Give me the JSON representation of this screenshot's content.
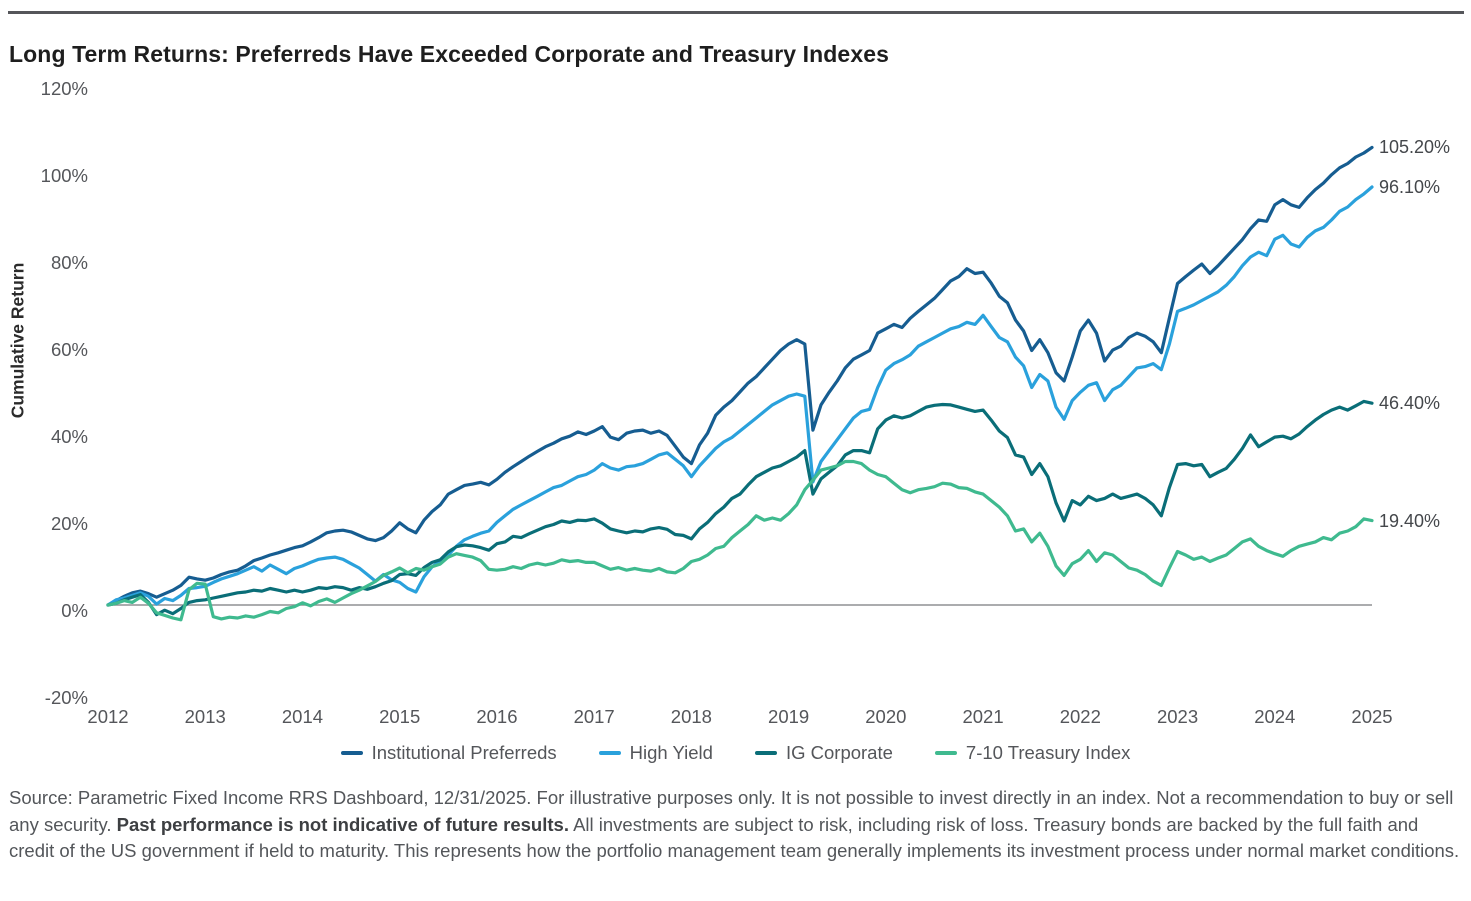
{
  "title": "Long Term Returns: Preferreds Have Exceeded Corporate and Treasury Indexes",
  "chart_data": {
    "type": "line",
    "title": "Long Term Returns: Preferreds Have Exceeded Corporate and Treasury Indexes",
    "xlabel": "",
    "ylabel": "Cumulative Return",
    "ylim": [
      -20,
      120
    ],
    "grid": "none",
    "zero_line": true,
    "legend_position": "bottom",
    "x_unit": "months from Dec 2012 to Dec 2025",
    "y_ticks": [
      {
        "label": "120%",
        "value": 120
      },
      {
        "label": "100%",
        "value": 100
      },
      {
        "label": "80%",
        "value": 80
      },
      {
        "label": "60%",
        "value": 60
      },
      {
        "label": "40%",
        "value": 40
      },
      {
        "label": "20%",
        "value": 20
      },
      {
        "label": "0%",
        "value": 0
      },
      {
        "label": "-20%",
        "value": -20
      }
    ],
    "x_ticks": [
      {
        "label": "2012",
        "month": 0
      },
      {
        "label": "2013",
        "month": 12
      },
      {
        "label": "2014",
        "month": 24
      },
      {
        "label": "2015",
        "month": 36
      },
      {
        "label": "2016",
        "month": 48
      },
      {
        "label": "2017",
        "month": 60
      },
      {
        "label": "2018",
        "month": 72
      },
      {
        "label": "2019",
        "month": 84
      },
      {
        "label": "2020",
        "month": 96
      },
      {
        "label": "2021",
        "month": 108
      },
      {
        "label": "2022",
        "month": 120
      },
      {
        "label": "2023",
        "month": 132
      },
      {
        "label": "2024",
        "month": 144
      },
      {
        "label": "2025",
        "month": 156
      }
    ],
    "series": [
      {
        "name": "Institutional Preferreds",
        "color": "#165d91",
        "end_label": "105.20%",
        "end_value": 105.2,
        "values": [
          0,
          1.0,
          2.0,
          2.8,
          3.2,
          2.6,
          1.8,
          2.6,
          3.4,
          4.5,
          6.4,
          6.0,
          5.7,
          6.2,
          7.0,
          7.6,
          8.0,
          9.0,
          10.2,
          10.8,
          11.5,
          12.0,
          12.6,
          13.2,
          13.6,
          14.5,
          15.5,
          16.6,
          17.0,
          17.2,
          16.8,
          16.0,
          15.2,
          14.8,
          15.5,
          17.0,
          18.9,
          17.5,
          16.6,
          19.5,
          21.5,
          23.0,
          25.5,
          26.5,
          27.5,
          27.8,
          28.2,
          27.6,
          28.9,
          30.5,
          31.8,
          33.0,
          34.2,
          35.3,
          36.4,
          37.2,
          38.2,
          38.8,
          39.8,
          39.2,
          40.0,
          41.0,
          38.6,
          38.0,
          39.5,
          40.0,
          40.2,
          39.5,
          40.0,
          39.0,
          36.5,
          34.0,
          32.5,
          36.8,
          39.5,
          43.6,
          45.5,
          47.0,
          49.0,
          51.0,
          52.5,
          54.5,
          56.5,
          58.5,
          60.0,
          61.0,
          60.0,
          40.2,
          46.0,
          48.9,
          51.5,
          54.5,
          56.5,
          57.5,
          58.5,
          62.5,
          63.5,
          64.5,
          63.8,
          65.9,
          67.5,
          69.0,
          70.5,
          72.5,
          74.5,
          75.5,
          77.3,
          76.2,
          76.5,
          74.0,
          71.0,
          69.5,
          65.5,
          63.0,
          58.5,
          61.0,
          58.0,
          53.4,
          51.5,
          57.0,
          63.0,
          65.5,
          62.5,
          56.1,
          58.6,
          59.5,
          61.5,
          62.5,
          61.8,
          60.5,
          58.0,
          66.0,
          73.9,
          75.5,
          77.0,
          78.4,
          76.2,
          78.0,
          80.0,
          82.0,
          84.0,
          86.5,
          88.5,
          88.2,
          92.0,
          93.2,
          92.0,
          91.4,
          93.6,
          95.5,
          97.0,
          98.9,
          100.5,
          101.5,
          103.0,
          103.9,
          105.2
        ]
      },
      {
        "name": "High Yield",
        "color": "#2aa1dc",
        "end_label": "96.10%",
        "end_value": 96.1,
        "values": [
          0,
          1.2,
          1.6,
          2.2,
          2.8,
          2.0,
          0.2,
          1.5,
          1.0,
          2.2,
          3.8,
          4.0,
          4.3,
          5.2,
          6.0,
          6.6,
          7.2,
          8.0,
          8.8,
          7.8,
          9.2,
          8.2,
          7.2,
          8.4,
          9.0,
          9.8,
          10.5,
          10.8,
          11.0,
          10.5,
          9.5,
          8.5,
          7.0,
          5.5,
          7.0,
          5.8,
          5.2,
          3.8,
          3.0,
          6.5,
          8.8,
          10.0,
          11.5,
          13.5,
          15.0,
          15.8,
          16.5,
          17.0,
          19.0,
          20.5,
          22.0,
          23.0,
          24.0,
          25.0,
          26.0,
          27.0,
          27.5,
          28.5,
          29.5,
          30.0,
          31.0,
          32.5,
          31.5,
          31.0,
          31.8,
          32.0,
          32.5,
          33.5,
          34.5,
          35.0,
          33.5,
          32.0,
          29.5,
          32.0,
          34.0,
          36.0,
          37.5,
          38.5,
          40.0,
          41.5,
          43.0,
          44.5,
          46.0,
          47.0,
          48.0,
          48.5,
          48.0,
          28.3,
          33.0,
          35.5,
          38.0,
          40.5,
          43.0,
          44.5,
          45.0,
          50.0,
          54.0,
          55.5,
          56.4,
          57.5,
          59.5,
          60.5,
          61.5,
          62.5,
          63.5,
          64.0,
          65.0,
          64.5,
          66.6,
          64.0,
          61.5,
          60.5,
          57.0,
          55.0,
          50.0,
          53.0,
          51.5,
          45.5,
          42.7,
          47.0,
          48.9,
          50.5,
          51.1,
          47.0,
          49.5,
          50.5,
          52.5,
          54.5,
          54.8,
          55.5,
          54.1,
          60.0,
          67.5,
          68.2,
          69.0,
          70.0,
          71.0,
          72.0,
          73.5,
          75.5,
          78.0,
          80.0,
          81.1,
          80.3,
          84.1,
          85.0,
          83.0,
          82.3,
          84.5,
          86.0,
          86.8,
          88.5,
          90.5,
          91.5,
          93.2,
          94.5,
          96.1
        ]
      },
      {
        "name": "IG Corporate",
        "color": "#0a6e78",
        "end_label": "46.40%",
        "end_value": 46.4,
        "values": [
          0,
          0.4,
          1.2,
          1.8,
          2.4,
          0.6,
          -2.2,
          -1.2,
          -2.0,
          -0.8,
          0.6,
          1.0,
          1.2,
          1.6,
          2.0,
          2.4,
          2.8,
          3.0,
          3.4,
          3.2,
          3.8,
          3.4,
          3.0,
          3.4,
          3.0,
          3.4,
          4.0,
          3.8,
          4.2,
          4.0,
          3.4,
          4.0,
          3.6,
          4.2,
          5.0,
          5.6,
          7.0,
          7.2,
          6.8,
          8.6,
          9.8,
          10.4,
          12.2,
          13.4,
          13.8,
          13.6,
          13.2,
          12.6,
          14.1,
          14.5,
          15.8,
          15.5,
          16.4,
          17.2,
          18.0,
          18.5,
          19.3,
          19.0,
          19.5,
          19.4,
          19.8,
          18.8,
          17.5,
          17.0,
          16.6,
          17.0,
          16.8,
          17.5,
          17.8,
          17.4,
          16.2,
          16.0,
          15.2,
          17.5,
          19.0,
          21.0,
          22.5,
          24.5,
          25.5,
          27.6,
          29.5,
          30.5,
          31.5,
          32.0,
          33.0,
          34.0,
          35.5,
          25.5,
          29.0,
          30.5,
          32.0,
          34.5,
          35.5,
          35.5,
          35.0,
          40.5,
          42.5,
          43.5,
          43.0,
          43.5,
          44.5,
          45.5,
          45.9,
          46.1,
          46.0,
          45.5,
          45.0,
          44.5,
          44.8,
          42.5,
          40.0,
          38.5,
          34.5,
          34.0,
          30.0,
          32.5,
          29.5,
          23.5,
          19.3,
          24.0,
          23.0,
          25.0,
          24.0,
          24.5,
          25.5,
          24.5,
          25.0,
          25.5,
          24.5,
          23.0,
          20.5,
          27.0,
          32.3,
          32.5,
          32.0,
          32.3,
          29.5,
          30.5,
          31.4,
          33.5,
          36.0,
          39.1,
          36.4,
          37.5,
          38.6,
          38.8,
          38.2,
          39.3,
          41.0,
          42.5,
          43.8,
          44.8,
          45.5,
          44.8,
          45.8,
          46.8,
          46.4
        ]
      },
      {
        "name": "7-10 Treasury Index",
        "color": "#3fba8f",
        "end_label": "19.40%",
        "end_value": 19.4,
        "values": [
          0,
          0.4,
          1.0,
          0.6,
          1.8,
          0.4,
          -1.8,
          -2.4,
          -3.0,
          -3.4,
          3.5,
          5.0,
          4.8,
          -2.7,
          -3.2,
          -2.8,
          -3.0,
          -2.5,
          -2.8,
          -2.2,
          -1.5,
          -1.8,
          -0.8,
          -0.4,
          0.5,
          -0.2,
          0.8,
          1.4,
          0.6,
          1.6,
          2.6,
          3.4,
          4.4,
          5.4,
          6.8,
          7.6,
          8.5,
          7.4,
          8.4,
          8.0,
          8.8,
          9.4,
          11.0,
          11.8,
          11.4,
          11.0,
          10.2,
          8.2,
          8.0,
          8.2,
          8.8,
          8.4,
          9.2,
          9.6,
          9.2,
          9.6,
          10.4,
          10.0,
          10.2,
          9.8,
          9.8,
          9.0,
          8.2,
          8.6,
          8.0,
          8.4,
          8.0,
          7.8,
          8.4,
          7.6,
          7.4,
          8.4,
          10.0,
          10.5,
          11.5,
          13.0,
          13.5,
          15.5,
          17.0,
          18.5,
          20.5,
          19.5,
          20.0,
          19.5,
          21.0,
          23.0,
          26.5,
          28.7,
          31.0,
          31.5,
          32.0,
          33.0,
          33.0,
          32.5,
          31.0,
          30.0,
          29.5,
          28.0,
          26.5,
          25.8,
          26.5,
          26.8,
          27.2,
          28.0,
          27.8,
          27.0,
          26.8,
          26.0,
          25.5,
          24.0,
          22.5,
          20.5,
          17.0,
          17.5,
          14.5,
          16.5,
          13.5,
          9.0,
          6.8,
          9.5,
          10.5,
          12.5,
          10.0,
          12.0,
          11.5,
          10.0,
          8.5,
          8.0,
          7.0,
          5.5,
          4.5,
          8.5,
          12.3,
          11.5,
          10.5,
          11.0,
          10.0,
          10.8,
          11.5,
          13.0,
          14.5,
          15.2,
          13.5,
          12.5,
          11.8,
          11.2,
          12.5,
          13.5,
          14.0,
          14.5,
          15.5,
          15.0,
          16.5,
          17.0,
          18.0,
          19.8,
          19.4
        ]
      }
    ]
  },
  "footer": {
    "line1": "Source: Parametric Fixed Income RRS Dashboard, 12/31/2025. For illustrative purposes only. It is not possible to invest directly in an index. Not a recommendation",
    "line2_pre": "to buy or sell any security. ",
    "line2_bold": "Past performance is not indicative of future results.",
    "line2_post": " All investments are subject to risk, including risk of loss. Treasury bonds are",
    "line3": "backed by the full faith and credit of the US government if held to maturity. This represents how the portfolio management team generally implements its",
    "line4": "investment process under normal market conditions."
  }
}
